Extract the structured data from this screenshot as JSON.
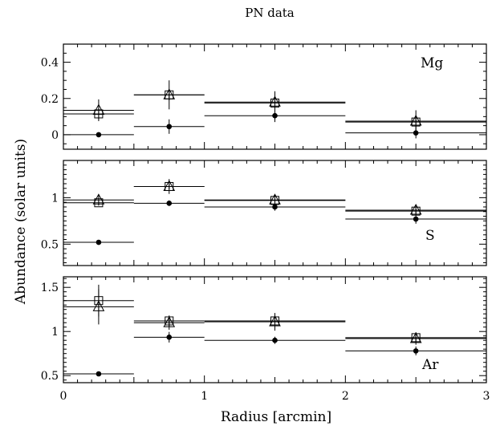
{
  "chart_data": {
    "type": "scatter",
    "title": "PN data",
    "xlabel": "Radius [arcmin]",
    "ylabel": "Abundance (solar units)",
    "xlim": [
      0,
      3
    ],
    "x_ticks": [
      "0",
      "1",
      "2",
      "3"
    ],
    "bins": [
      [
        0,
        0.5
      ],
      [
        0.5,
        1
      ],
      [
        1,
        2
      ],
      [
        2,
        3
      ]
    ],
    "x": [
      0.25,
      0.75,
      1.5,
      2.5
    ],
    "panels": [
      {
        "label": "Mg",
        "ylim": [
          -0.08,
          0.5
        ],
        "y_ticks": [
          {
            "value": 0,
            "label": "0"
          },
          {
            "value": 0.2,
            "label": "0.2"
          },
          {
            "value": 0.4,
            "label": "0.4"
          }
        ],
        "series": [
          {
            "marker": "square",
            "values": [
              0.115,
              0.22,
              0.175,
              0.07
            ],
            "err": [
              0.03,
              0.03,
              0.03,
              0.03
            ]
          },
          {
            "marker": "triangle",
            "values": [
              0.135,
              0.22,
              0.18,
              0.075
            ],
            "err": [
              0.06,
              0.08,
              0.06,
              0.06
            ]
          },
          {
            "marker": "dot",
            "values": [
              0.0,
              0.045,
              0.105,
              0.01
            ],
            "err": [
              0,
              0.04,
              0.035,
              0.03
            ]
          }
        ]
      },
      {
        "label": "S",
        "ylim": [
          0.27,
          1.4
        ],
        "y_ticks": [
          {
            "value": 0.5,
            "label": "0.5"
          },
          {
            "value": 1,
            "label": "1"
          }
        ],
        "series": [
          {
            "marker": "square",
            "values": [
              0.945,
              1.12,
              0.97,
              0.855
            ],
            "err": [
              0.03,
              0.03,
              0.03,
              0.03
            ]
          },
          {
            "marker": "triangle",
            "values": [
              0.975,
              1.12,
              0.975,
              0.865
            ],
            "err": [
              0.06,
              0.08,
              0.06,
              0.05
            ]
          },
          {
            "marker": "dot",
            "values": [
              0.52,
              0.94,
              0.9,
              0.77
            ],
            "err": [
              0,
              0.03,
              0.04,
              0.05
            ]
          }
        ]
      },
      {
        "label": "Ar",
        "ylim": [
          0.42,
          1.62
        ],
        "y_ticks": [
          {
            "value": 0.5,
            "label": "0.5"
          },
          {
            "value": 1,
            "label": "1"
          },
          {
            "value": 1.5,
            "label": "1.5"
          }
        ],
        "series": [
          {
            "marker": "square",
            "values": [
              1.35,
              1.12,
              1.12,
              0.93
            ],
            "err": [
              0.18,
              0.06,
              0.08,
              0.06
            ]
          },
          {
            "marker": "triangle",
            "values": [
              1.28,
              1.1,
              1.11,
              0.92
            ],
            "err": [
              0.2,
              0.08,
              0.1,
              0.07
            ]
          },
          {
            "marker": "dot",
            "values": [
              0.52,
              0.935,
              0.9,
              0.78
            ],
            "err": [
              0,
              0.06,
              0.04,
              0.05
            ]
          }
        ]
      }
    ]
  }
}
